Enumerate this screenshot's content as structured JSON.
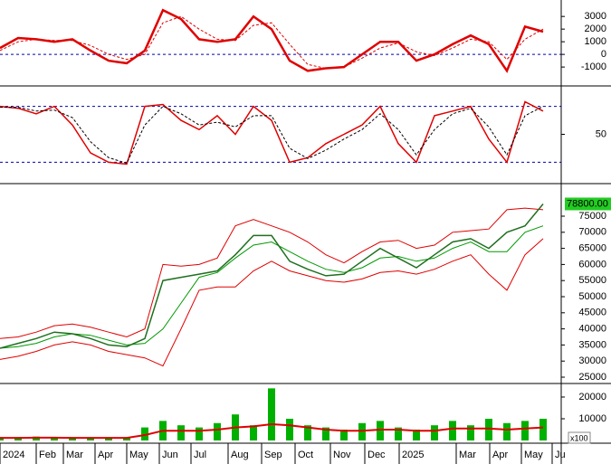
{
  "chart_data": [
    {
      "type": "line",
      "x": [
        0,
        2,
        4,
        6,
        8,
        10,
        12,
        14,
        16,
        18,
        20,
        22,
        24,
        26,
        28,
        30,
        32,
        34,
        36,
        38,
        40,
        42,
        44,
        46,
        48,
        50,
        52,
        54,
        56,
        58,
        60
      ],
      "xlim": [
        0,
        62
      ],
      "ylim": [
        -2350,
        4300
      ],
      "yticks": [
        3000,
        2000,
        1000,
        0,
        -1000
      ],
      "ref_lines": [
        0
      ],
      "series": [
        {
          "type": "line",
          "color": "#e00000",
          "width": 2.5,
          "values": [
            500,
            1300,
            1200,
            1000,
            1200,
            300,
            -500,
            -700,
            300,
            3500,
            2800,
            1200,
            1000,
            1200,
            3000,
            2000,
            -500,
            -1300,
            -1100,
            -1000,
            0,
            1000,
            1000,
            -500,
            0,
            800,
            1500,
            800,
            -1300,
            2200,
            1800
          ]
        },
        {
          "type": "line",
          "color": "#e00000",
          "width": 1,
          "dashed": true,
          "values": [
            300,
            1000,
            1200,
            1100,
            1100,
            700,
            0,
            -400,
            0,
            2500,
            3000,
            2000,
            1200,
            1100,
            2300,
            2500,
            800,
            -800,
            -1100,
            -1000,
            -300,
            500,
            900,
            200,
            -100,
            500,
            1200,
            1000,
            -400,
            1200,
            2000
          ]
        }
      ]
    },
    {
      "type": "line",
      "x": [
        0,
        2,
        4,
        6,
        8,
        10,
        12,
        14,
        16,
        18,
        20,
        22,
        24,
        26,
        28,
        30,
        32,
        34,
        36,
        38,
        40,
        42,
        44,
        46,
        48,
        50,
        52,
        54,
        56,
        58,
        60
      ],
      "xlim": [
        0,
        62
      ],
      "ylim": [
        0,
        100
      ],
      "yticks": [
        50
      ],
      "ref_lines": [
        80,
        20
      ],
      "series": [
        {
          "type": "line",
          "color": "#e00000",
          "width": 1.5,
          "values": [
            80,
            78,
            72,
            80,
            60,
            30,
            20,
            18,
            80,
            82,
            65,
            55,
            70,
            50,
            80,
            65,
            20,
            25,
            40,
            50,
            60,
            80,
            40,
            20,
            70,
            75,
            80,
            45,
            20,
            85,
            75
          ]
        },
        {
          "type": "line",
          "color": "#000000",
          "width": 1,
          "dashed": true,
          "values": [
            79,
            79,
            75,
            76,
            68,
            42,
            25,
            19,
            60,
            80,
            72,
            60,
            63,
            58,
            70,
            70,
            35,
            24,
            33,
            45,
            55,
            72,
            55,
            28,
            55,
            72,
            78,
            58,
            28,
            70,
            80
          ]
        }
      ]
    },
    {
      "type": "line",
      "x": [
        0,
        2,
        4,
        6,
        8,
        10,
        12,
        14,
        16,
        18,
        20,
        22,
        24,
        26,
        28,
        30,
        32,
        34,
        36,
        38,
        40,
        42,
        44,
        46,
        48,
        50,
        52,
        54,
        56,
        58,
        60
      ],
      "xlim": [
        0,
        62
      ],
      "ylim": [
        23600,
        84550
      ],
      "yticks": [
        75000,
        70000,
        65000,
        60000,
        55000,
        50000,
        45000,
        40000,
        35000,
        30000,
        25000
      ],
      "price_tag": {
        "value": 78800,
        "label": "78800.00"
      },
      "series": [
        {
          "type": "line",
          "color": "#e00000",
          "width": 1,
          "values": [
            37000,
            37500,
            39000,
            41000,
            41500,
            40500,
            39000,
            37500,
            40000,
            60000,
            59500,
            60000,
            62000,
            72000,
            74000,
            72000,
            70000,
            67000,
            63000,
            60500,
            64000,
            67000,
            67500,
            65000,
            66000,
            70000,
            70500,
            71000,
            77000,
            77500,
            77000
          ]
        },
        {
          "type": "line",
          "color": "#e00000",
          "width": 1,
          "values": [
            30500,
            31500,
            33000,
            35000,
            36000,
            35000,
            33000,
            32000,
            31000,
            28500,
            40000,
            52000,
            53000,
            53000,
            58000,
            61000,
            58000,
            56500,
            55000,
            54500,
            55500,
            57500,
            58000,
            57000,
            58500,
            61000,
            63000,
            57000,
            52000,
            63000,
            68000
          ]
        },
        {
          "type": "line",
          "color": "#009900",
          "width": 1,
          "values": [
            34000,
            34500,
            35500,
            37500,
            38500,
            38000,
            36500,
            35000,
            35500,
            40000,
            48000,
            56000,
            57500,
            62000,
            66000,
            67000,
            64000,
            61000,
            58500,
            57500,
            59000,
            62000,
            62500,
            61000,
            62000,
            65000,
            67000,
            64000,
            64000,
            70000,
            72000
          ]
        },
        {
          "type": "line",
          "color": "#1f6f1f",
          "width": 1.5,
          "values": [
            34000,
            35500,
            37000,
            39000,
            38500,
            37000,
            35000,
            34500,
            37000,
            55000,
            56000,
            57000,
            58000,
            63000,
            69000,
            69000,
            61000,
            58500,
            56500,
            57000,
            61000,
            65000,
            62000,
            59000,
            63000,
            67000,
            68000,
            65000,
            70000,
            72000,
            78800
          ]
        }
      ]
    },
    {
      "type": "bar",
      "x": [
        0,
        2,
        4,
        6,
        8,
        10,
        12,
        14,
        16,
        18,
        20,
        22,
        24,
        26,
        28,
        30,
        32,
        34,
        36,
        38,
        40,
        42,
        44,
        46,
        48,
        50,
        52,
        54,
        56,
        58,
        60
      ],
      "xlim": [
        0,
        62
      ],
      "ylim": [
        0,
        25400
      ],
      "yticks": [
        20000,
        10000
      ],
      "unit_label": "x100",
      "xticks": [
        {
          "value": 0,
          "label": "2024"
        },
        {
          "value": 4,
          "label": "Feb"
        },
        {
          "value": 7,
          "label": "Mar"
        },
        {
          "value": 10.5,
          "label": "Apr"
        },
        {
          "value": 14,
          "label": "May"
        },
        {
          "value": 17.6,
          "label": "Jun"
        },
        {
          "value": 21.1,
          "label": "Jul"
        },
        {
          "value": 25.2,
          "label": "Aug"
        },
        {
          "value": 28.9,
          "label": "Sep"
        },
        {
          "value": 32.6,
          "label": "Oct"
        },
        {
          "value": 36.5,
          "label": "Nov"
        },
        {
          "value": 40.3,
          "label": "Dec"
        },
        {
          "value": 44.1,
          "label": "2025"
        },
        {
          "value": 50.4,
          "label": "Mar"
        },
        {
          "value": 54.1,
          "label": "Apr"
        },
        {
          "value": 57.6,
          "label": "May"
        },
        {
          "value": 61,
          "label": "Ju"
        }
      ],
      "series": [
        {
          "type": "bar",
          "color": "#00b000",
          "values": [
            1500,
            1500,
            1800,
            1500,
            1500,
            1500,
            1500,
            1500,
            6000,
            9000,
            7000,
            6000,
            8000,
            12000,
            7000,
            24000,
            10000,
            7000,
            6000,
            5000,
            8000,
            9000,
            6000,
            5000,
            7000,
            9000,
            7000,
            10000,
            8000,
            9000,
            10000
          ]
        },
        {
          "type": "line",
          "color": "#e00000",
          "width": 2,
          "values": [
            1200,
            1200,
            1300,
            1300,
            1200,
            1200,
            1200,
            1200,
            2500,
            4500,
            4500,
            4500,
            5000,
            6000,
            6500,
            7500,
            7000,
            6000,
            5000,
            4500,
            4500,
            5000,
            5000,
            4500,
            4500,
            5500,
            5500,
            5500,
            5000,
            5500,
            6000
          ]
        }
      ]
    }
  ]
}
